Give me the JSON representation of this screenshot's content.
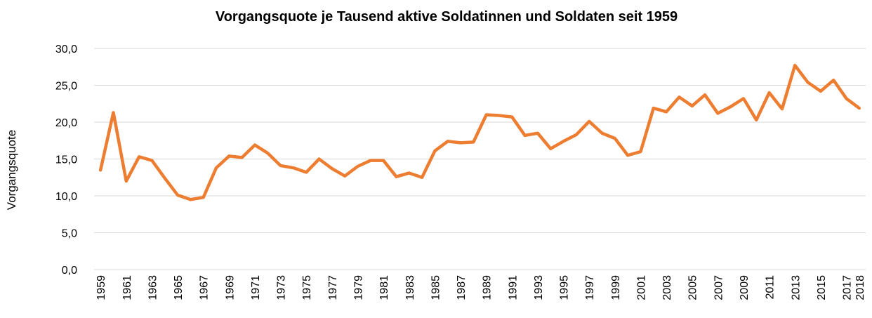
{
  "chart_data": {
    "type": "line",
    "title": "Vorgangsquote je Tausend aktive Soldatinnen und Soldaten seit 1959",
    "y_label": "Vorgangsquote",
    "categories": [
      "1959",
      null,
      "1961",
      null,
      "1963",
      null,
      "1965",
      null,
      "1967",
      null,
      "1969",
      null,
      "1971",
      null,
      "1973",
      null,
      "1975",
      null,
      "1977",
      null,
      "1979",
      null,
      "1981",
      null,
      "1983",
      null,
      "1985",
      null,
      "1987",
      null,
      "1989",
      null,
      "1991",
      null,
      "1993",
      null,
      "1995",
      null,
      "1997",
      null,
      "1999",
      null,
      "2001",
      null,
      "2003",
      null,
      "2005",
      null,
      "2007",
      null,
      "2009",
      null,
      "2011",
      null,
      "2013",
      null,
      "2015",
      null,
      "2017",
      "2018"
    ],
    "series": [
      {
        "name": "Vorgangsquote",
        "color": "#ed7d31",
        "values": [
          13.5,
          21.3,
          12.0,
          15.3,
          14.8,
          12.4,
          10.1,
          9.5,
          9.8,
          13.8,
          15.4,
          15.2,
          16.9,
          15.8,
          14.1,
          13.8,
          13.2,
          15.0,
          13.7,
          12.7,
          14.0,
          14.8,
          14.8,
          12.6,
          13.1,
          12.5,
          16.1,
          17.4,
          17.2,
          17.3,
          21.0,
          20.9,
          20.7,
          18.2,
          18.5,
          16.4,
          17.4,
          18.3,
          20.1,
          18.5,
          17.8,
          15.5,
          16.0,
          21.9,
          21.4,
          23.4,
          22.2,
          23.7,
          21.2,
          22.1,
          23.2,
          20.3,
          24.0,
          21.8,
          27.7,
          25.4,
          24.2,
          25.7,
          23.2,
          21.9
        ]
      }
    ],
    "ylim": [
      0,
      30
    ],
    "yticks": [
      {
        "value": 0,
        "label": "0,0"
      },
      {
        "value": 5,
        "label": "5,0"
      },
      {
        "value": 10,
        "label": "10,0"
      },
      {
        "value": 15,
        "label": "15,0"
      },
      {
        "value": 20,
        "label": "20,0"
      },
      {
        "value": 25,
        "label": "25,0"
      },
      {
        "value": 30,
        "label": "30,0"
      }
    ],
    "grid": true
  }
}
